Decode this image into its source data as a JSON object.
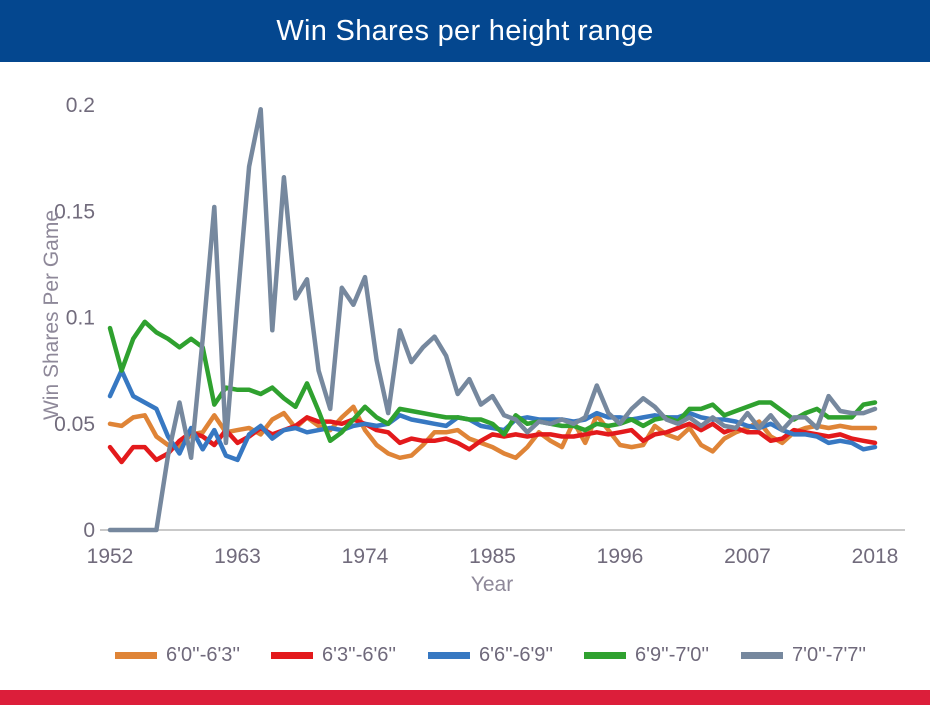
{
  "header": {
    "title": "Win Shares per height range",
    "bg_color": "#04478F",
    "text_color": "#ffffff"
  },
  "footer": {
    "stripe_color": "#DC1E3A"
  },
  "axis_style": {
    "tick_color": "#716B7C",
    "axis_title_color": "#8E8899",
    "baseline_color": "#C9C9C9"
  },
  "chart_data": {
    "type": "line",
    "title": "Win Shares per height range",
    "xlabel": "Year",
    "ylabel": "Win Shares Per Game",
    "grid": false,
    "legend_position": "bottom",
    "xlim": [
      1952,
      2018
    ],
    "ylim": [
      0,
      0.21
    ],
    "x_tick_values": [
      1952,
      1963,
      1974,
      1985,
      1996,
      2007,
      2018
    ],
    "x_tick_labels": [
      "1952",
      "1963",
      "1974",
      "1985",
      "1996",
      "2007",
      "2018"
    ],
    "y_tick_values": [
      0,
      0.05,
      0.1,
      0.15,
      0.2
    ],
    "y_tick_labels": [
      "0",
      "0.05",
      "0.1",
      "0.15",
      "0.2"
    ],
    "years": [
      1952,
      1953,
      1954,
      1955,
      1956,
      1957,
      1958,
      1959,
      1960,
      1961,
      1962,
      1963,
      1964,
      1965,
      1966,
      1967,
      1968,
      1969,
      1970,
      1971,
      1972,
      1973,
      1974,
      1975,
      1976,
      1977,
      1978,
      1979,
      1980,
      1981,
      1982,
      1983,
      1984,
      1985,
      1986,
      1987,
      1988,
      1989,
      1990,
      1991,
      1992,
      1993,
      1994,
      1995,
      1996,
      1997,
      1998,
      1999,
      2000,
      2001,
      2002,
      2003,
      2004,
      2005,
      2006,
      2007,
      2008,
      2009,
      2010,
      2011,
      2012,
      2013,
      2014,
      2015,
      2016,
      2017,
      2018
    ],
    "series": [
      {
        "name": "6'0''-6'3''",
        "color": "#DF8437",
        "values": [
          0.05,
          0.049,
          0.053,
          0.054,
          0.044,
          0.04,
          0.039,
          0.045,
          0.046,
          0.054,
          0.046,
          0.047,
          0.048,
          0.045,
          0.052,
          0.055,
          0.048,
          0.053,
          0.049,
          0.047,
          0.053,
          0.058,
          0.047,
          0.04,
          0.036,
          0.034,
          0.035,
          0.04,
          0.046,
          0.046,
          0.047,
          0.043,
          0.041,
          0.039,
          0.036,
          0.034,
          0.039,
          0.046,
          0.042,
          0.039,
          0.051,
          0.041,
          0.054,
          0.047,
          0.04,
          0.039,
          0.04,
          0.049,
          0.045,
          0.043,
          0.048,
          0.04,
          0.037,
          0.043,
          0.046,
          0.048,
          0.051,
          0.044,
          0.041,
          0.046,
          0.048,
          0.049,
          0.048,
          0.049,
          0.048,
          0.048,
          0.048
        ]
      },
      {
        "name": "6'3''-6'6''",
        "color": "#E31A1C",
        "values": [
          0.039,
          0.032,
          0.039,
          0.039,
          0.033,
          0.036,
          0.042,
          0.046,
          0.044,
          0.04,
          0.047,
          0.041,
          0.044,
          0.048,
          0.045,
          0.047,
          0.049,
          0.053,
          0.051,
          0.051,
          0.05,
          0.052,
          0.05,
          0.047,
          0.046,
          0.041,
          0.043,
          0.042,
          0.042,
          0.043,
          0.041,
          0.038,
          0.042,
          0.045,
          0.044,
          0.045,
          0.044,
          0.045,
          0.045,
          0.044,
          0.044,
          0.045,
          0.046,
          0.045,
          0.046,
          0.047,
          0.042,
          0.045,
          0.046,
          0.048,
          0.05,
          0.047,
          0.05,
          0.046,
          0.048,
          0.046,
          0.046,
          0.042,
          0.043,
          0.047,
          0.046,
          0.045,
          0.044,
          0.045,
          0.043,
          0.042,
          0.041
        ]
      },
      {
        "name": "6'6''-6'9''",
        "color": "#3778C2",
        "values": [
          0.063,
          0.075,
          0.063,
          0.06,
          0.057,
          0.044,
          0.036,
          0.048,
          0.038,
          0.047,
          0.035,
          0.033,
          0.045,
          0.049,
          0.043,
          0.047,
          0.048,
          0.046,
          0.047,
          0.048,
          0.047,
          0.049,
          0.05,
          0.049,
          0.05,
          0.054,
          0.052,
          0.051,
          0.05,
          0.049,
          0.053,
          0.052,
          0.049,
          0.048,
          0.047,
          0.052,
          0.053,
          0.052,
          0.052,
          0.052,
          0.051,
          0.052,
          0.055,
          0.053,
          0.053,
          0.052,
          0.053,
          0.054,
          0.053,
          0.053,
          0.055,
          0.053,
          0.052,
          0.052,
          0.051,
          0.049,
          0.048,
          0.05,
          0.047,
          0.045,
          0.045,
          0.044,
          0.041,
          0.042,
          0.041,
          0.038,
          0.039
        ]
      },
      {
        "name": "6'9''-7'0''",
        "color": "#2FA12F",
        "values": [
          0.095,
          0.075,
          0.09,
          0.098,
          0.093,
          0.09,
          0.086,
          0.09,
          0.086,
          0.059,
          0.067,
          0.066,
          0.066,
          0.064,
          0.067,
          0.062,
          0.058,
          0.069,
          0.056,
          0.042,
          0.046,
          0.052,
          0.058,
          0.053,
          0.05,
          0.057,
          0.056,
          0.055,
          0.054,
          0.053,
          0.053,
          0.052,
          0.052,
          0.05,
          0.045,
          0.054,
          0.05,
          0.051,
          0.05,
          0.049,
          0.049,
          0.047,
          0.05,
          0.049,
          0.05,
          0.052,
          0.049,
          0.052,
          0.053,
          0.051,
          0.057,
          0.057,
          0.059,
          0.054,
          0.056,
          0.058,
          0.06,
          0.06,
          0.056,
          0.052,
          0.055,
          0.057,
          0.053,
          0.053,
          0.053,
          0.059,
          0.06
        ]
      },
      {
        "name": "7'0''-7'7''",
        "color": "#76889E",
        "values": [
          0.0,
          0.0,
          0.0,
          0.0,
          0.0,
          0.035,
          0.06,
          0.034,
          0.09,
          0.152,
          0.041,
          0.108,
          0.171,
          0.198,
          0.094,
          0.166,
          0.109,
          0.118,
          0.075,
          0.057,
          0.114,
          0.106,
          0.119,
          0.08,
          0.055,
          0.094,
          0.079,
          0.086,
          0.091,
          0.082,
          0.064,
          0.071,
          0.059,
          0.063,
          0.054,
          0.052,
          0.046,
          0.051,
          0.05,
          0.052,
          0.05,
          0.053,
          0.068,
          0.055,
          0.05,
          0.057,
          0.062,
          0.058,
          0.052,
          0.05,
          0.053,
          0.049,
          0.053,
          0.049,
          0.048,
          0.055,
          0.048,
          0.054,
          0.047,
          0.053,
          0.053,
          0.048,
          0.063,
          0.056,
          0.055,
          0.055,
          0.057
        ]
      }
    ]
  }
}
